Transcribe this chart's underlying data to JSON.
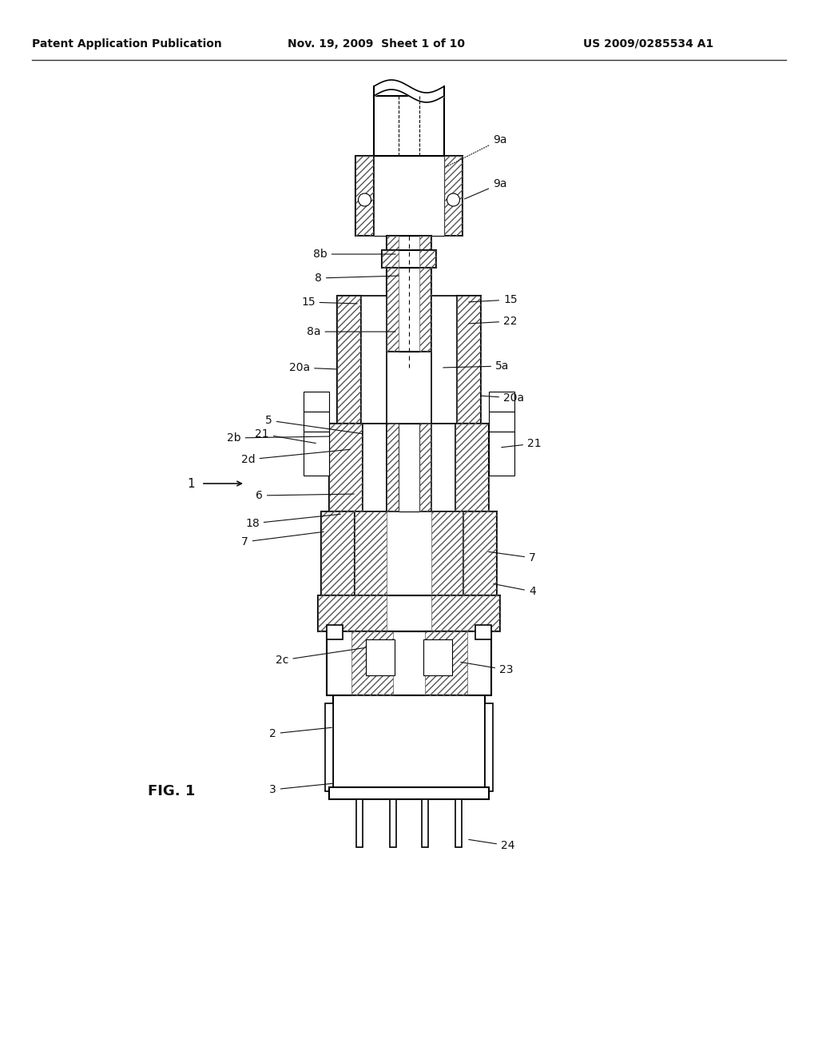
{
  "background_color": "#ffffff",
  "header_left": "Patent Application Publication",
  "header_center": "Nov. 19, 2009  Sheet 1 of 10",
  "header_right": "US 2009/0285534 A1",
  "fig_label": "FIG. 1",
  "title_fontsize": 11,
  "label_fontsize": 10,
  "ref_label_fontsize": 10
}
